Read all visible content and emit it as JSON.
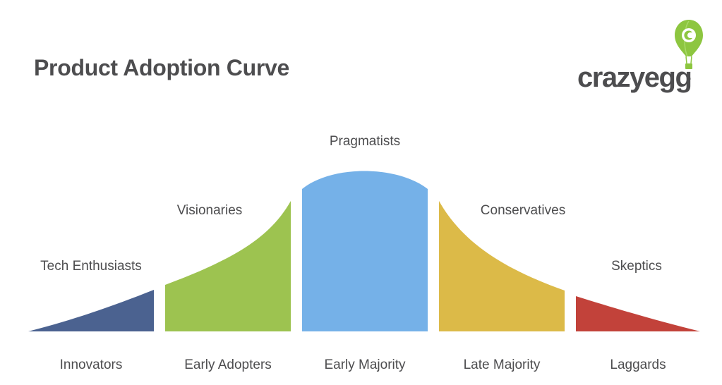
{
  "title": "Product Adoption Curve",
  "logo": {
    "text": "crazyegg",
    "trademark": "™",
    "icon": "balloon-icon",
    "colors": {
      "text": "#4d4d4f",
      "balloon": "#8dc640"
    }
  },
  "segments": [
    {
      "name": "Innovators",
      "persona": "Tech Enthusiasts",
      "color": "#4b6290"
    },
    {
      "name": "Early Adopters",
      "persona": "Visionaries",
      "color": "#9dc350"
    },
    {
      "name": "Early Majority",
      "persona": "Pragmatists",
      "color": "#75b1e8"
    },
    {
      "name": "Late Majority",
      "persona": "Conservatives",
      "color": "#dcba48"
    },
    {
      "name": "Laggards",
      "persona": "Skeptics",
      "color": "#c2423a"
    }
  ]
}
